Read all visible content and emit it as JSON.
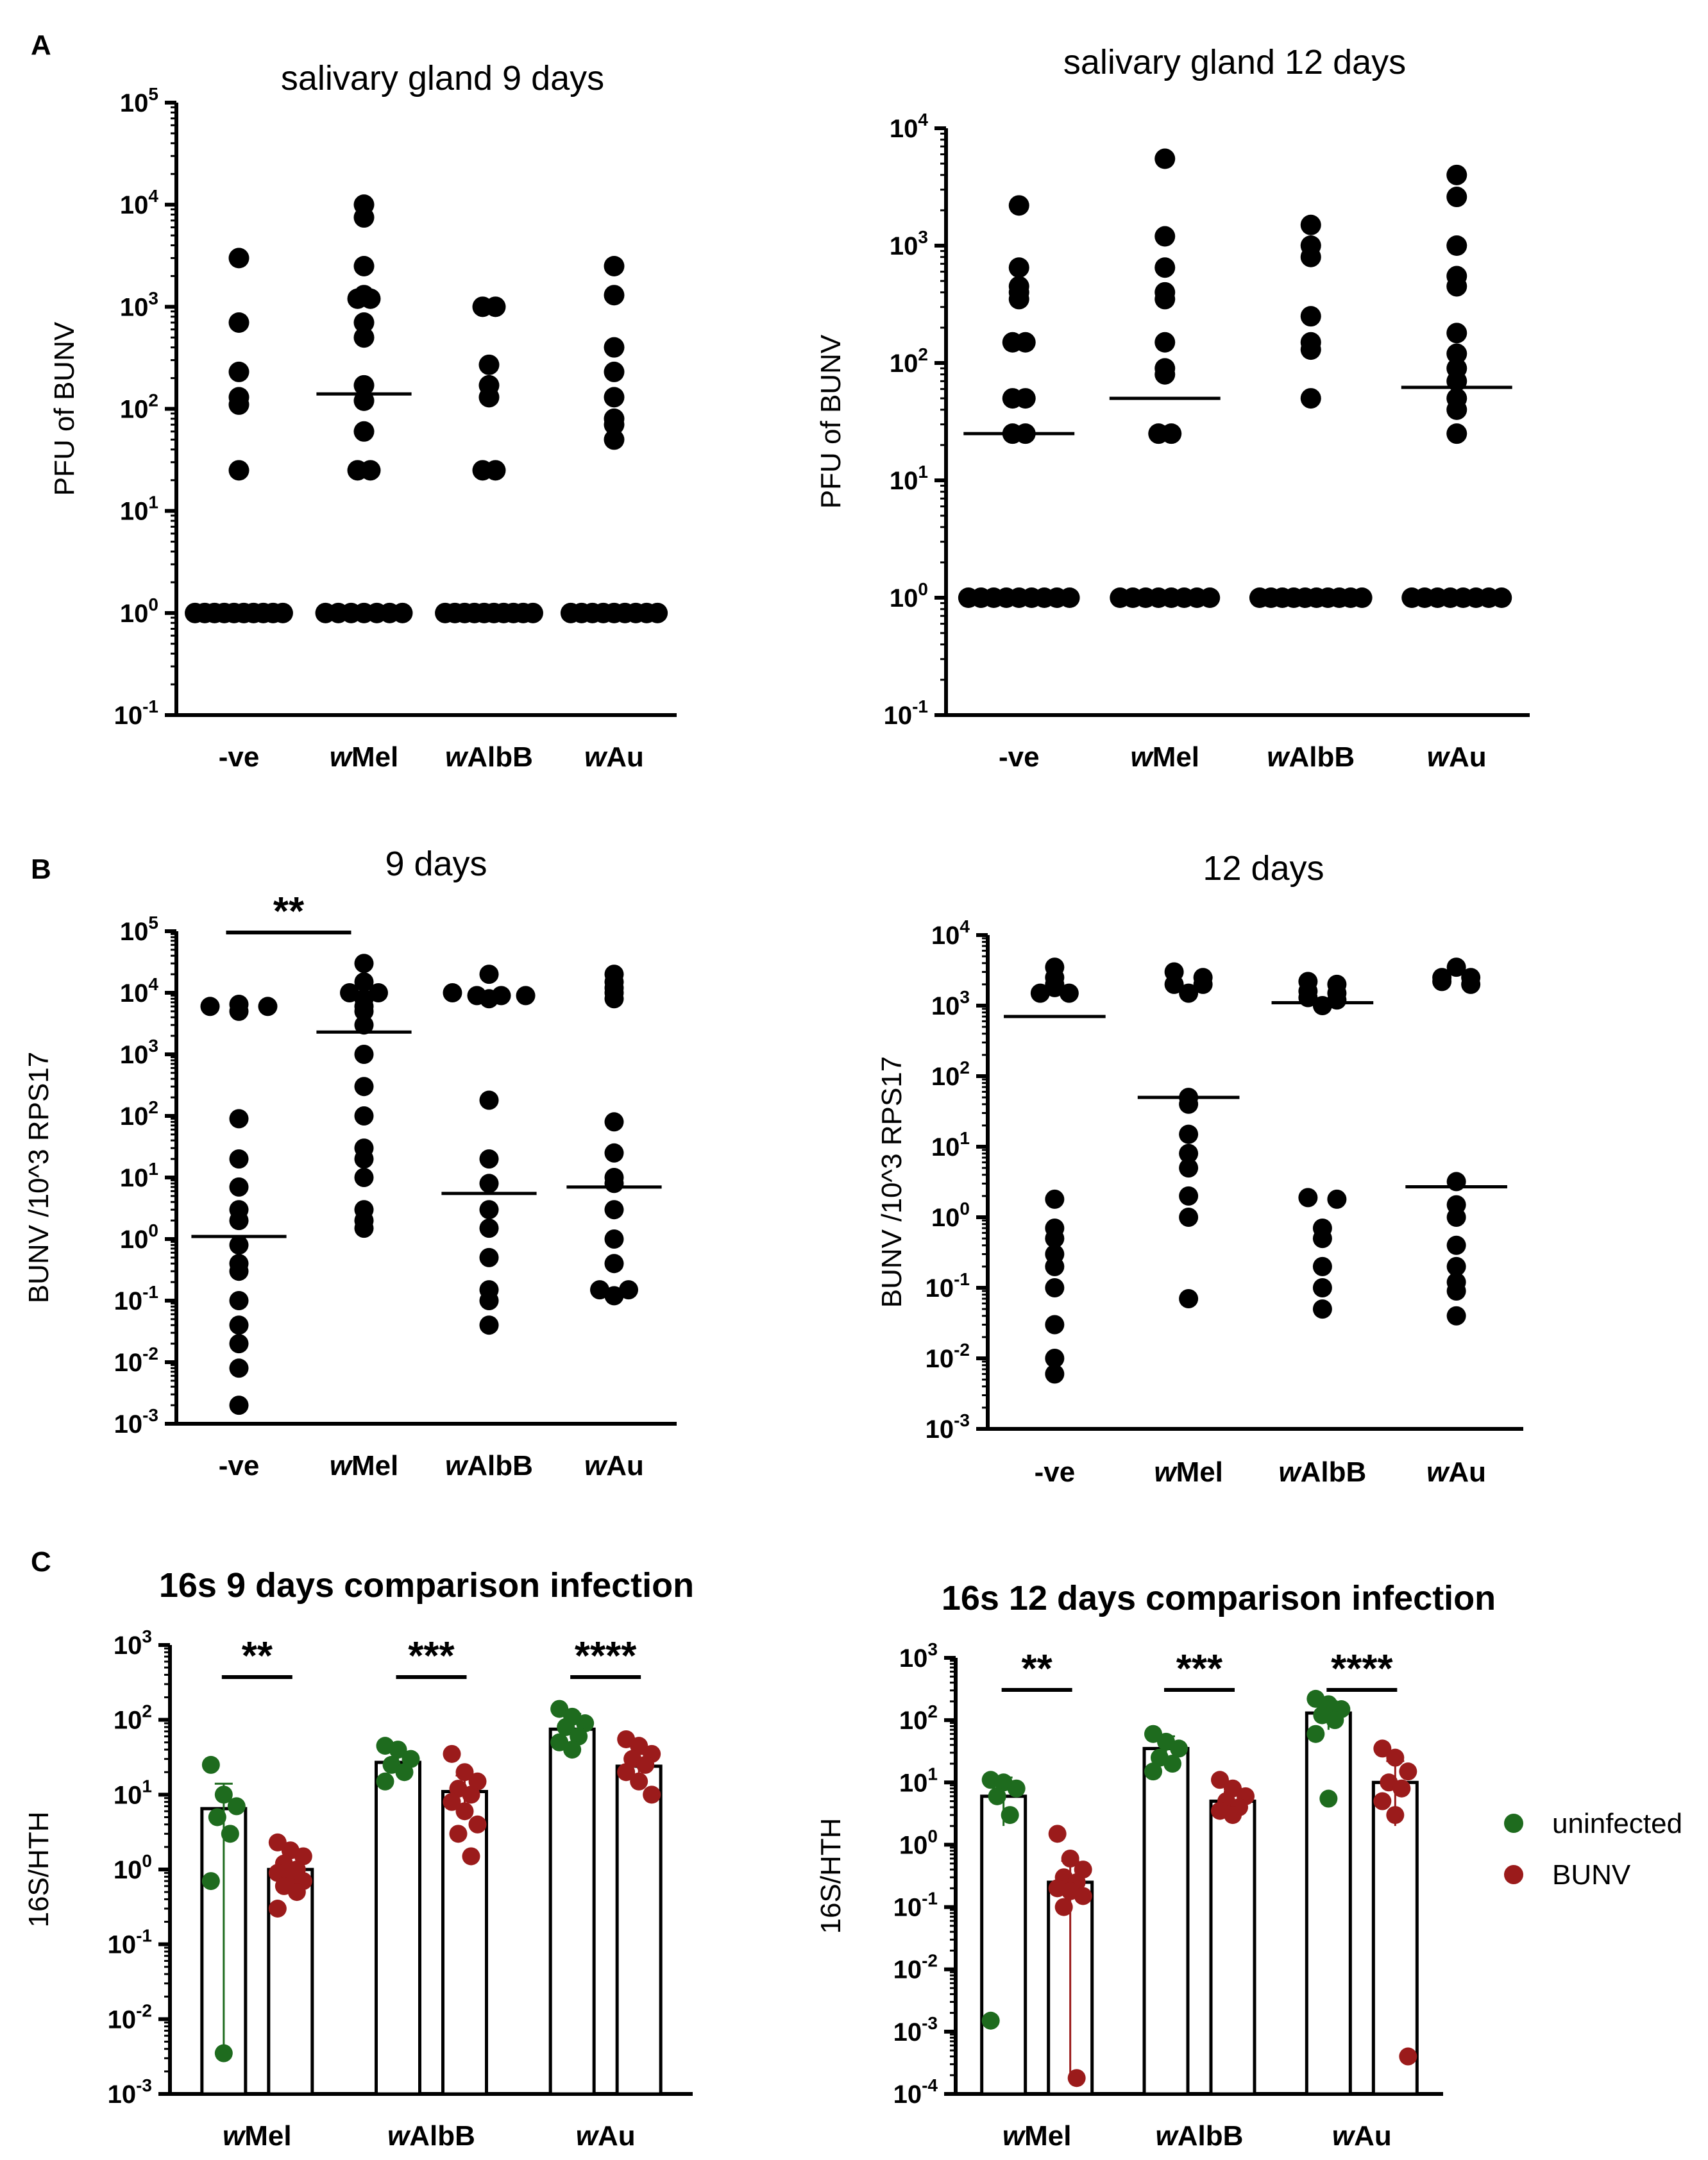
{
  "panel_letters": [
    "A",
    "B",
    "C"
  ],
  "legend": {
    "uninfected": "uninfected",
    "bunv": "BUNV",
    "uninfected_color": "#1e6b1e",
    "bunv_color": "#9b1b1b"
  },
  "chart_data": [
    {
      "id": "A1",
      "type": "scatter",
      "scale": "log",
      "title": "salivary gland 9 days",
      "ylabel": "PFU of BUNV",
      "ylim_exp": [
        -1,
        5
      ],
      "categories": [
        "-ve",
        "wMel",
        "wAlbB",
        "wAu"
      ],
      "category_parts": [
        [
          "",
          "-ve"
        ],
        [
          "w",
          "Mel"
        ],
        [
          "w",
          "AlbB"
        ],
        [
          "w",
          "Au"
        ]
      ],
      "groups": [
        {
          "values": [
            3000,
            700,
            230,
            130,
            110,
            25,
            1,
            1,
            1,
            1,
            1,
            1,
            1,
            1,
            1,
            1
          ],
          "median": null
        },
        {
          "values": [
            10000,
            7500,
            2500,
            1300,
            1200,
            1200,
            700,
            500,
            170,
            120,
            60,
            25,
            25,
            1,
            1,
            1,
            1,
            1,
            1,
            1
          ],
          "median": 140
        },
        {
          "values": [
            1000,
            1000,
            270,
            170,
            130,
            25,
            25,
            1,
            1,
            1,
            1,
            1,
            1,
            1,
            1,
            1,
            1
          ],
          "median": null
        },
        {
          "values": [
            2500,
            1300,
            400,
            230,
            130,
            80,
            70,
            50,
            1,
            1,
            1,
            1,
            1,
            1,
            1,
            1,
            1
          ],
          "median": null
        }
      ],
      "sig": []
    },
    {
      "id": "A2",
      "type": "scatter",
      "scale": "log",
      "title": "salivary gland 12 days",
      "ylabel": "PFU of BUNV",
      "ylim_exp": [
        -1,
        4
      ],
      "categories": [
        "-ve",
        "wMel",
        "wAlbB",
        "wAu"
      ],
      "category_parts": [
        [
          "",
          "-ve"
        ],
        [
          "w",
          "Mel"
        ],
        [
          "w",
          "AlbB"
        ],
        [
          "w",
          "Au"
        ]
      ],
      "groups": [
        {
          "values": [
            2200,
            650,
            450,
            400,
            350,
            150,
            150,
            50,
            50,
            25,
            25,
            1,
            1,
            1,
            1,
            1,
            1,
            1,
            1,
            1
          ],
          "median": 25
        },
        {
          "values": [
            5500,
            1200,
            650,
            400,
            350,
            150,
            90,
            80,
            25,
            25,
            1,
            1,
            1,
            1,
            1,
            1,
            1,
            1
          ],
          "median": 50
        },
        {
          "values": [
            1500,
            1000,
            800,
            250,
            150,
            130,
            50,
            1,
            1,
            1,
            1,
            1,
            1,
            1,
            1,
            1,
            1
          ],
          "median": null
        },
        {
          "values": [
            4000,
            2600,
            1000,
            550,
            450,
            180,
            120,
            90,
            70,
            50,
            40,
            25,
            1,
            1,
            1,
            1,
            1,
            1,
            1,
            1
          ],
          "median": 62
        }
      ],
      "sig": []
    },
    {
      "id": "B1",
      "type": "scatter",
      "scale": "log",
      "title": "9 days",
      "ylabel": "BUNV /10^3 RPS17",
      "ylim_exp": [
        -3,
        5
      ],
      "categories": [
        "-ve",
        "wMel",
        "wAlbB",
        "wAu"
      ],
      "category_parts": [
        [
          "",
          "-ve"
        ],
        [
          "w",
          "Mel"
        ],
        [
          "w",
          "AlbB"
        ],
        [
          "w",
          "Au"
        ]
      ],
      "groups": [
        {
          "values": [
            6000,
            6500,
            6000,
            5000,
            90,
            20,
            7,
            3,
            2,
            0.8,
            0.4,
            0.3,
            0.1,
            0.04,
            0.02,
            0.008,
            0.002
          ],
          "median": 1.1
        },
        {
          "values": [
            30000,
            15000,
            10000,
            10000,
            8000,
            6000,
            5000,
            3000,
            1000,
            300,
            100,
            30,
            20,
            10,
            3,
            2,
            1.5
          ],
          "median": 2300
        },
        {
          "values": [
            20000,
            10000,
            9000,
            9000,
            9000,
            8000,
            180,
            20,
            8,
            3,
            1.5,
            0.5,
            0.15,
            0.1,
            0.04
          ],
          "median": 5.5
        },
        {
          "values": [
            20000,
            15000,
            12000,
            10000,
            8000,
            80,
            25,
            10,
            8,
            3,
            1,
            0.4,
            0.15,
            0.15,
            0.12
          ],
          "median": 7
        }
      ],
      "sig": [
        {
          "from": 0,
          "to": 1,
          "label": "**"
        }
      ]
    },
    {
      "id": "B2",
      "type": "scatter",
      "scale": "log",
      "title": "12 days",
      "ylabel": "BUNV /10^3 RPS17",
      "ylim_exp": [
        -3,
        4
      ],
      "categories": [
        "-ve",
        "wMel",
        "wAlbB",
        "wAu"
      ],
      "category_parts": [
        [
          "",
          "-ve"
        ],
        [
          "w",
          "Mel"
        ],
        [
          "w",
          "AlbB"
        ],
        [
          "w",
          "Au"
        ]
      ],
      "groups": [
        {
          "values": [
            3500,
            2500,
            2000,
            1800,
            1500,
            1500,
            1.8,
            0.7,
            0.5,
            0.3,
            0.2,
            0.1,
            0.03,
            0.01,
            0.006
          ],
          "median": 700
        },
        {
          "values": [
            3000,
            2500,
            2000,
            2000,
            1500,
            50,
            40,
            15,
            8,
            5,
            2,
            1,
            0.07
          ],
          "median": 50
        },
        {
          "values": [
            2200,
            2000,
            1600,
            1500,
            1300,
            1200,
            1000,
            1.9,
            1.8,
            0.7,
            0.5,
            0.2,
            0.1,
            0.05
          ],
          "median": 1100
        },
        {
          "values": [
            3500,
            2500,
            2500,
            2200,
            2000,
            3.2,
            1.5,
            1,
            0.4,
            0.2,
            0.12,
            0.09,
            0.04
          ],
          "median": 2.7
        }
      ],
      "sig": []
    },
    {
      "id": "C1",
      "type": "bar",
      "scale": "log",
      "title": "16s 9 days comparison infection",
      "ylabel": "16S/HTH",
      "ylim_exp": [
        -3,
        3
      ],
      "categories": [
        "wMel",
        "wAlbB",
        "wAu"
      ],
      "category_parts": [
        [
          "w",
          "Mel"
        ],
        [
          "w",
          "AlbB"
        ],
        [
          "w",
          "Au"
        ]
      ],
      "series": [
        {
          "name": "uninfected",
          "bars": [
            6.5,
            27,
            75
          ],
          "err_hi": [
            14,
            38,
            120
          ],
          "err_lo": [
            0.0035,
            18,
            45
          ],
          "points": [
            [
              25,
              10,
              7,
              5,
              3,
              0.7,
              0.0035
            ],
            [
              45,
              40,
              30,
              25,
              20,
              15
            ],
            [
              140,
              110,
              90,
              80,
              60,
              50,
              40
            ]
          ]
        },
        {
          "name": "BUNV",
          "bars": [
            1,
            11,
            24
          ],
          "err_hi": [
            1.5,
            18,
            35
          ],
          "err_lo": [
            0.6,
            6,
            15
          ],
          "points": [
            [
              2.3,
              1.8,
              1.5,
              1.2,
              1,
              0.9,
              0.8,
              0.7,
              0.6,
              0.5,
              0.3
            ],
            [
              35,
              20,
              15,
              12,
              10,
              8,
              6,
              4,
              3,
              1.5
            ],
            [
              55,
              45,
              35,
              30,
              25,
              20,
              15,
              10
            ]
          ]
        }
      ],
      "sig": [
        {
          "group": 0,
          "label": "**"
        },
        {
          "group": 1,
          "label": "***"
        },
        {
          "group": 2,
          "label": "****"
        }
      ]
    },
    {
      "id": "C2",
      "type": "bar",
      "scale": "log",
      "title": "16s 12 days comparison infection",
      "ylabel": "16S/HTH",
      "ylim_exp": [
        -4,
        3
      ],
      "categories": [
        "wMel",
        "wAlbB",
        "wAu"
      ],
      "category_parts": [
        [
          "w",
          "Mel"
        ],
        [
          "w",
          "AlbB"
        ],
        [
          "w",
          "Au"
        ]
      ],
      "series": [
        {
          "name": "uninfected",
          "bars": [
            6,
            35,
            130
          ],
          "err_hi": [
            12,
            55,
            200
          ],
          "err_lo": [
            2,
            18,
            70
          ],
          "points": [
            [
              11,
              10,
              8,
              6,
              3,
              0.0015
            ],
            [
              60,
              45,
              35,
              25,
              20,
              15
            ],
            [
              220,
              180,
              150,
              120,
              100,
              60,
              5.5
            ]
          ]
        },
        {
          "name": "BUNV",
          "bars": [
            0.25,
            5,
            10
          ],
          "err_hi": [
            0.55,
            7,
            22
          ],
          "err_lo": [
            0.00018,
            3.5,
            2
          ],
          "points": [
            [
              1.5,
              0.6,
              0.4,
              0.3,
              0.25,
              0.2,
              0.18,
              0.15,
              0.1,
              0.00018
            ],
            [
              11,
              8,
              6,
              5,
              4,
              3.5,
              3
            ],
            [
              35,
              25,
              15,
              10,
              8,
              5,
              3,
              0.0004
            ]
          ]
        }
      ],
      "sig": [
        {
          "group": 0,
          "label": "**"
        },
        {
          "group": 1,
          "label": "***"
        },
        {
          "group": 2,
          "label": "****"
        }
      ]
    }
  ]
}
